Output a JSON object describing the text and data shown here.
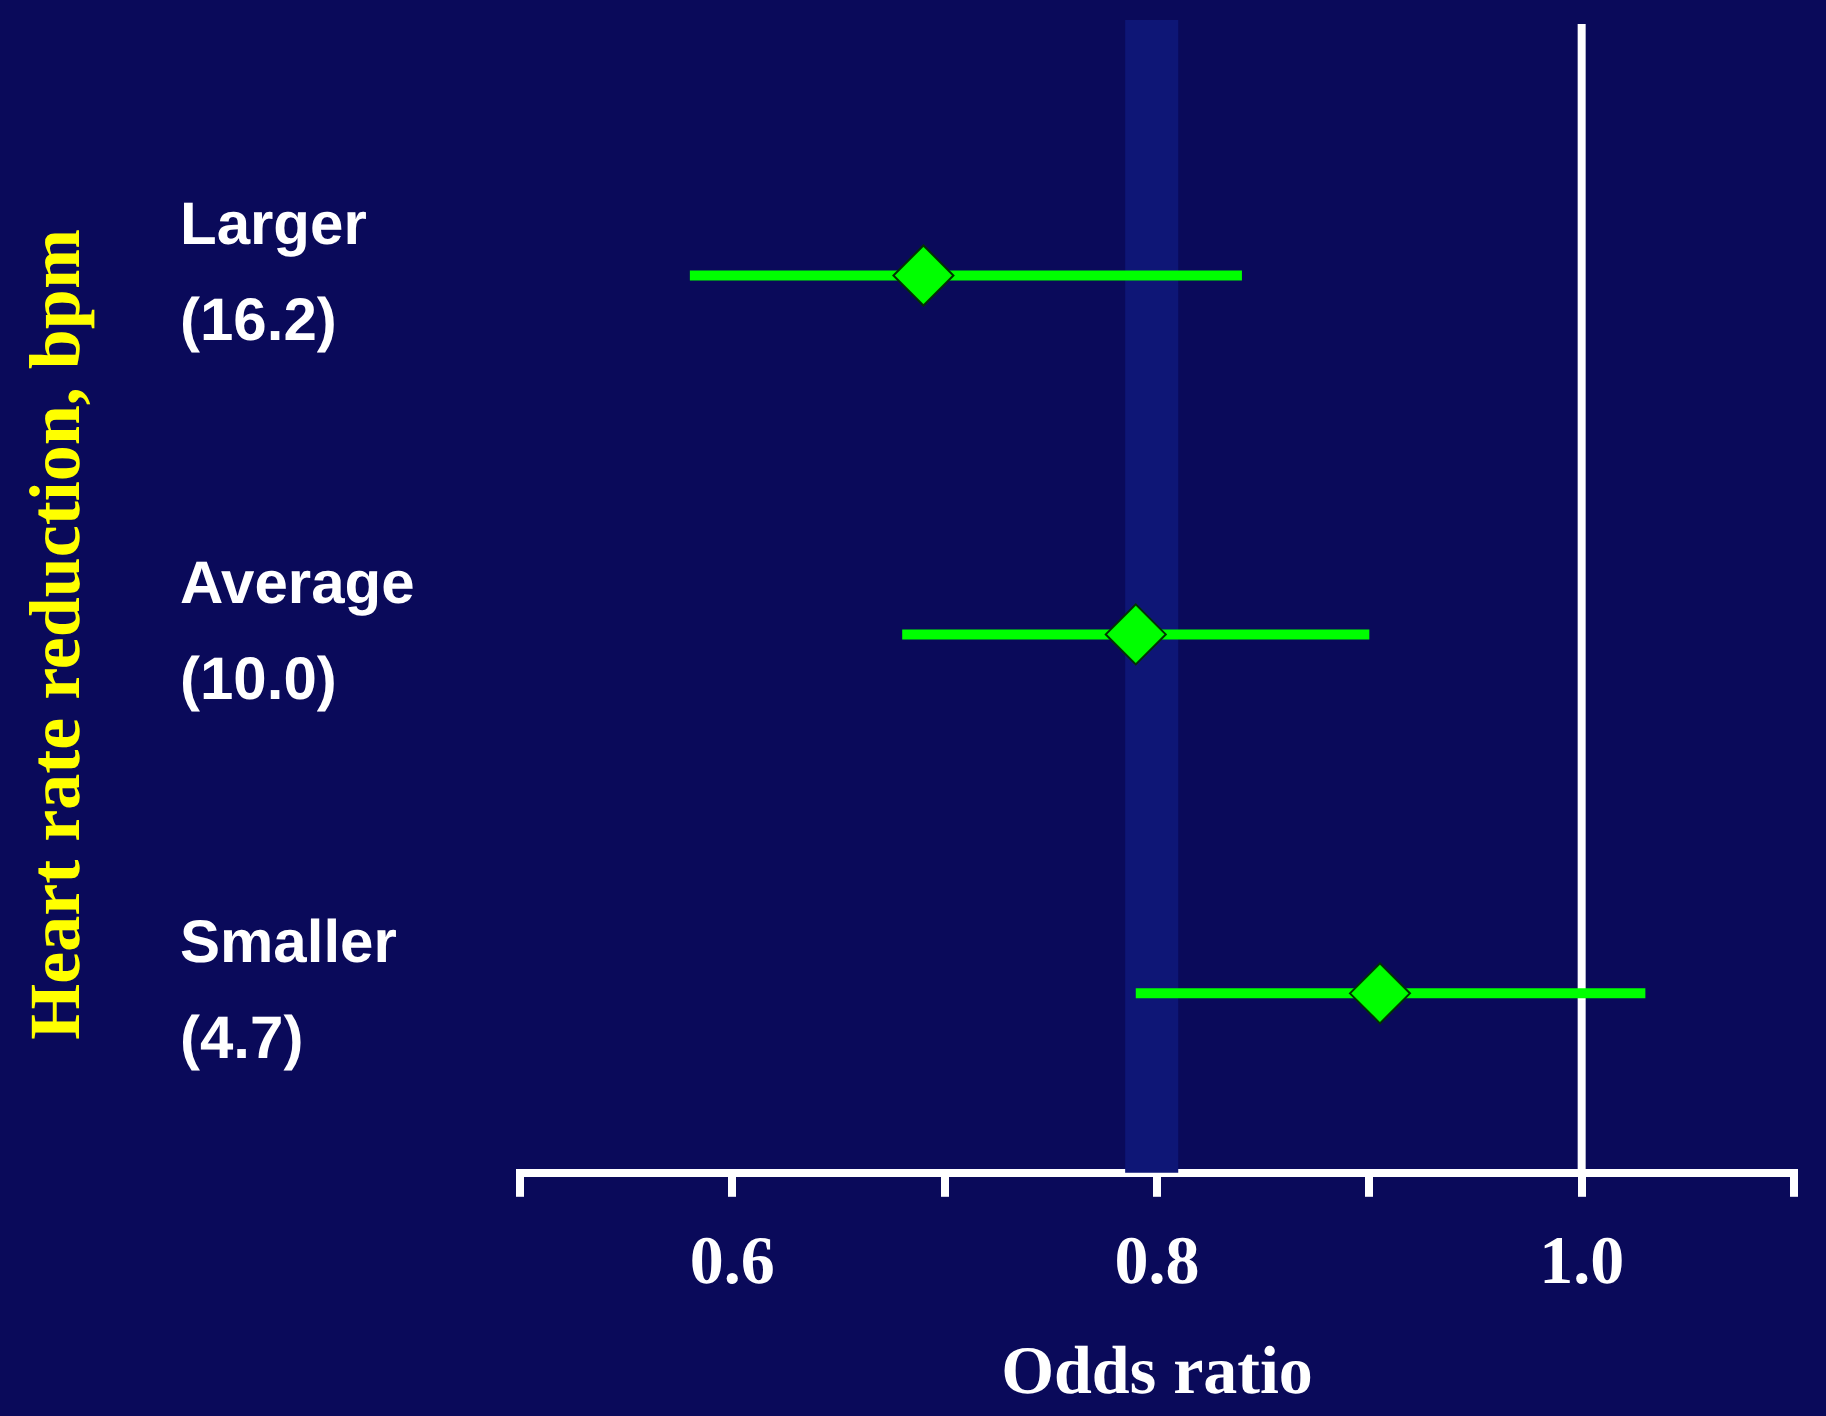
{
  "chart_data": {
    "type": "scatter",
    "orientation": "horizontal",
    "xlabel": "Odds ratio",
    "ylabel": "Heart rate reduction, bpm",
    "categories": [
      "Larger\n(16.2)",
      "Average\n(10.0)",
      "Smaller\n(4.7)"
    ],
    "values": [
      0.69,
      0.79,
      0.905
    ],
    "errors": [
      [
        0.58,
        0.84
      ],
      [
        0.68,
        0.9
      ],
      [
        0.79,
        1.03
      ]
    ],
    "color": "#00ff00",
    "marker": "diamond",
    "xlim": [
      0.5,
      1.1
    ],
    "xticks": [
      {
        "value": 0.5,
        "label": null
      },
      0.6,
      {
        "value": 0.7,
        "label": null
      },
      0.8,
      {
        "value": 0.9,
        "label": null
      },
      {
        "value": 1.0,
        "label": "1.0"
      },
      {
        "value": 1.1,
        "label": null
      }
    ],
    "bands": [
      {
        "axis": "x",
        "from": 0.785,
        "to": 0.81,
        "color": "#0e1676"
      }
    ],
    "ref_lines": [
      {
        "axis": "x",
        "value": 1.0,
        "color": "#ffffff"
      }
    ],
    "grid": false,
    "legend": false
  }
}
